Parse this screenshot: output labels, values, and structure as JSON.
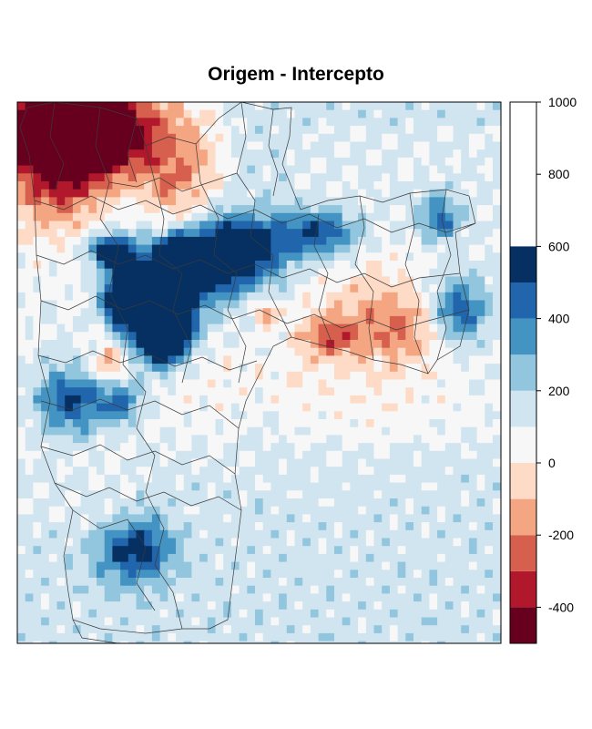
{
  "chart_data": {
    "type": "heatmap",
    "title": "Origem - Intercepto",
    "xlabel": "",
    "ylabel": "",
    "colorbar": {
      "breaks": [
        -500,
        -400,
        -300,
        -200,
        -100,
        0,
        100,
        200,
        300,
        400,
        500,
        600,
        700,
        800,
        900,
        1000
      ],
      "colors": [
        "#67001F",
        "#B2182B",
        "#D6604D",
        "#F4A582",
        "#FDDBC7",
        "#F7F7F7",
        "#D1E5F0",
        "#92C5DE",
        "#4393C3",
        "#2166AC",
        "#053061"
      ],
      "tick_values": [
        -400,
        -200,
        0,
        200,
        400,
        600,
        800,
        1000
      ],
      "tick_labels": [
        "-400",
        "-200",
        "0",
        "200",
        "400",
        "600",
        "800",
        "1000"
      ]
    },
    "grid": false,
    "legend": "right"
  }
}
